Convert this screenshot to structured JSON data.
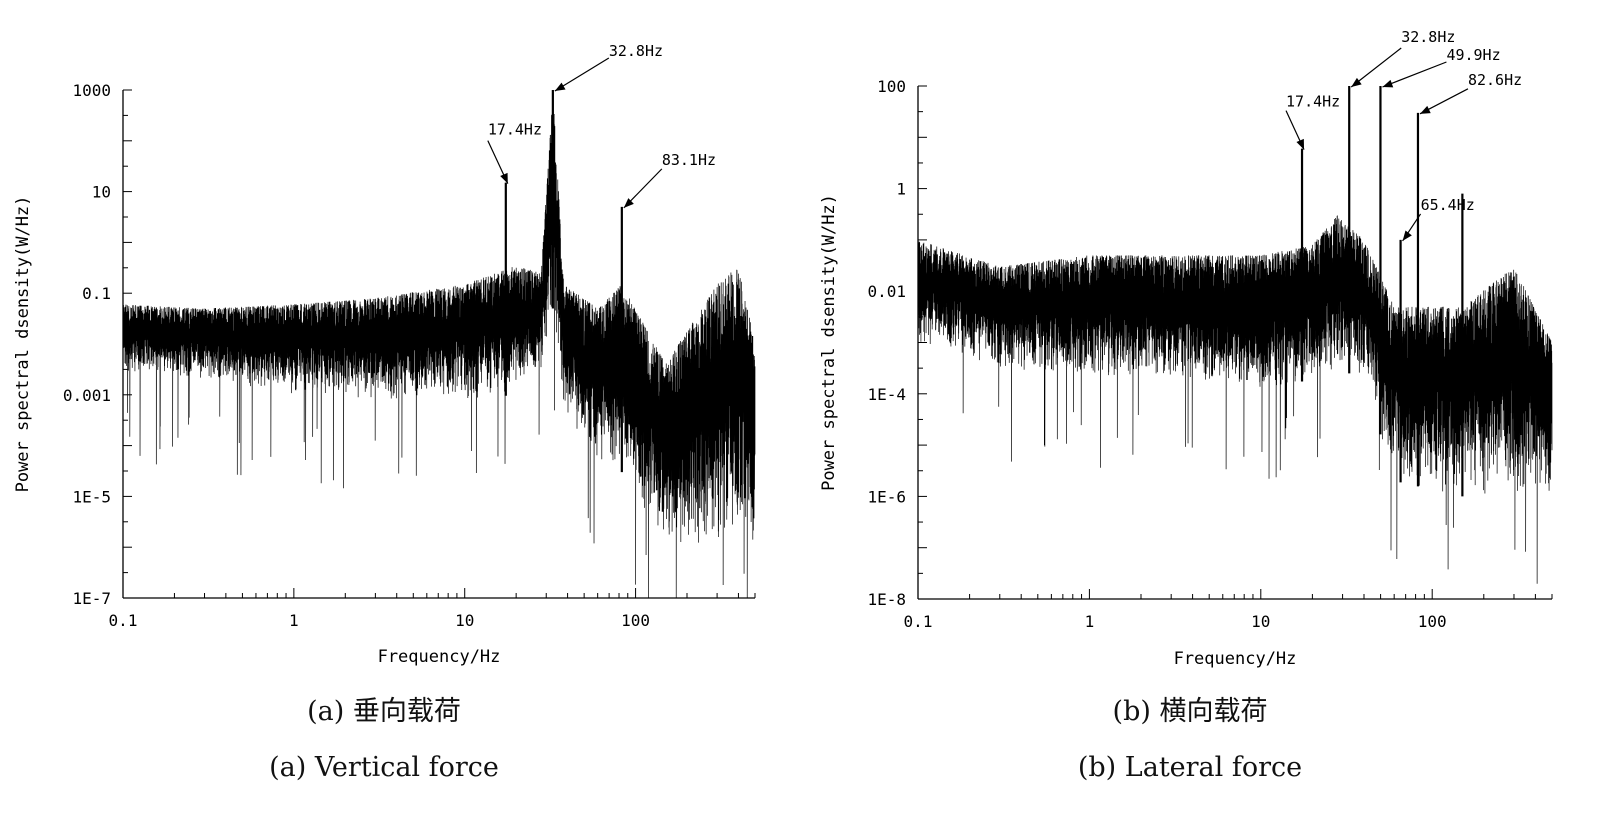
{
  "chart_data": [
    {
      "type": "line",
      "panel_id": "a",
      "xscale": "log",
      "yscale": "log",
      "xlim": [
        0.1,
        500
      ],
      "ylim": [
        1e-07,
        1000
      ],
      "xlabel": "Frequency/Hz",
      "ylabel": "Power spectral dsensity(W/Hz)",
      "xticks": [
        {
          "value": 0.1,
          "label": "0.1"
        },
        {
          "value": 1,
          "label": "1"
        },
        {
          "value": 10,
          "label": "10"
        },
        {
          "value": 100,
          "label": "100"
        }
      ],
      "yticks": [
        {
          "value": 1e-07,
          "label": "1E-7"
        },
        {
          "value": 1e-05,
          "label": "1E-5"
        },
        {
          "value": 0.001,
          "label": "0.001"
        },
        {
          "value": 0.1,
          "label": "0.1"
        },
        {
          "value": 10,
          "label": "10"
        },
        {
          "value": 1000,
          "label": "1000"
        }
      ],
      "annotations": [
        {
          "text": "17.4Hz",
          "x": 17.4,
          "y": 15
        },
        {
          "text": "32.8Hz",
          "x": 32.8,
          "y": 1000
        },
        {
          "text": "83.1Hz",
          "x": 83.1,
          "y": 5
        }
      ],
      "series": [
        {
          "envelope": [
            {
              "x": 0.1,
              "lo": 0.003,
              "hi": 0.06
            },
            {
              "x": 0.3,
              "lo": 0.002,
              "hi": 0.05
            },
            {
              "x": 1,
              "lo": 0.001,
              "hi": 0.06
            },
            {
              "x": 3,
              "lo": 0.0008,
              "hi": 0.08
            },
            {
              "x": 10,
              "lo": 0.0008,
              "hi": 0.15
            },
            {
              "x": 20,
              "lo": 0.001,
              "hi": 0.35
            },
            {
              "x": 28,
              "lo": 0.003,
              "hi": 0.25
            },
            {
              "x": 32.8,
              "lo": 0.05,
              "hi": 1000
            },
            {
              "x": 38,
              "lo": 0.0005,
              "hi": 0.15
            },
            {
              "x": 60,
              "lo": 5e-05,
              "hi": 0.05
            },
            {
              "x": 83.1,
              "lo": 3e-05,
              "hi": 0.15
            },
            {
              "x": 150,
              "lo": 1e-06,
              "hi": 0.004
            },
            {
              "x": 300,
              "lo": 1e-06,
              "hi": 0.15
            },
            {
              "x": 400,
              "lo": 3e-06,
              "hi": 0.35
            },
            {
              "x": 500,
              "lo": 1e-06,
              "hi": 0.01
            }
          ],
          "spikes": [
            {
              "x": 17.4,
              "y": 15
            },
            {
              "x": 32.8,
              "y": 1000
            },
            {
              "x": 83.1,
              "y": 5
            }
          ]
        }
      ],
      "caption_cn": "(a) 垂向载荷",
      "caption_en": "(a) Vertical force"
    },
    {
      "type": "line",
      "panel_id": "b",
      "xscale": "log",
      "yscale": "log",
      "xlim": [
        0.1,
        500
      ],
      "ylim": [
        1e-08,
        100
      ],
      "xlabel": "Frequency/Hz",
      "ylabel": "Power spectral dsensity(W/Hz)",
      "xticks": [
        {
          "value": 0.1,
          "label": "0.1"
        },
        {
          "value": 1,
          "label": "1"
        },
        {
          "value": 10,
          "label": "10"
        },
        {
          "value": 100,
          "label": "100"
        }
      ],
      "yticks": [
        {
          "value": 1e-08,
          "label": "1E-8"
        },
        {
          "value": 1e-06,
          "label": "1E-6"
        },
        {
          "value": 0.0001,
          "label": "1E-4"
        },
        {
          "value": 0.01,
          "label": "0.01"
        },
        {
          "value": 1,
          "label": "1"
        },
        {
          "value": 100,
          "label": "100"
        }
      ],
      "annotations": [
        {
          "text": "17.4Hz",
          "x": 17.4,
          "y": 6
        },
        {
          "text": "32.8Hz",
          "x": 32.8,
          "y": 100
        },
        {
          "text": "49.9Hz",
          "x": 49.9,
          "y": 100
        },
        {
          "text": "65.4Hz",
          "x": 65.4,
          "y": 0.1
        },
        {
          "text": "82.6Hz",
          "x": 82.6,
          "y": 30
        }
      ],
      "series": [
        {
          "envelope": [
            {
              "x": 0.1,
              "lo": 0.001,
              "hi": 0.1
            },
            {
              "x": 0.3,
              "lo": 0.0003,
              "hi": 0.03
            },
            {
              "x": 1,
              "lo": 0.0002,
              "hi": 0.05
            },
            {
              "x": 3,
              "lo": 0.0002,
              "hi": 0.05
            },
            {
              "x": 10,
              "lo": 0.0001,
              "hi": 0.05
            },
            {
              "x": 20,
              "lo": 0.0002,
              "hi": 0.08
            },
            {
              "x": 28,
              "lo": 0.0003,
              "hi": 0.3
            },
            {
              "x": 40,
              "lo": 0.0002,
              "hi": 0.1
            },
            {
              "x": 60,
              "lo": 2e-06,
              "hi": 0.005
            },
            {
              "x": 150,
              "lo": 1e-06,
              "hi": 0.005
            },
            {
              "x": 300,
              "lo": 1e-06,
              "hi": 0.03
            },
            {
              "x": 500,
              "lo": 1e-06,
              "hi": 0.001
            }
          ],
          "spikes": [
            {
              "x": 17.4,
              "y": 6
            },
            {
              "x": 32.8,
              "y": 100
            },
            {
              "x": 49.9,
              "y": 100
            },
            {
              "x": 65.4,
              "y": 0.1
            },
            {
              "x": 82.6,
              "y": 30
            },
            {
              "x": 150,
              "y": 0.8
            }
          ]
        }
      ],
      "caption_cn": "(b) 横向载荷",
      "caption_en": "(b) Lateral force"
    }
  ]
}
